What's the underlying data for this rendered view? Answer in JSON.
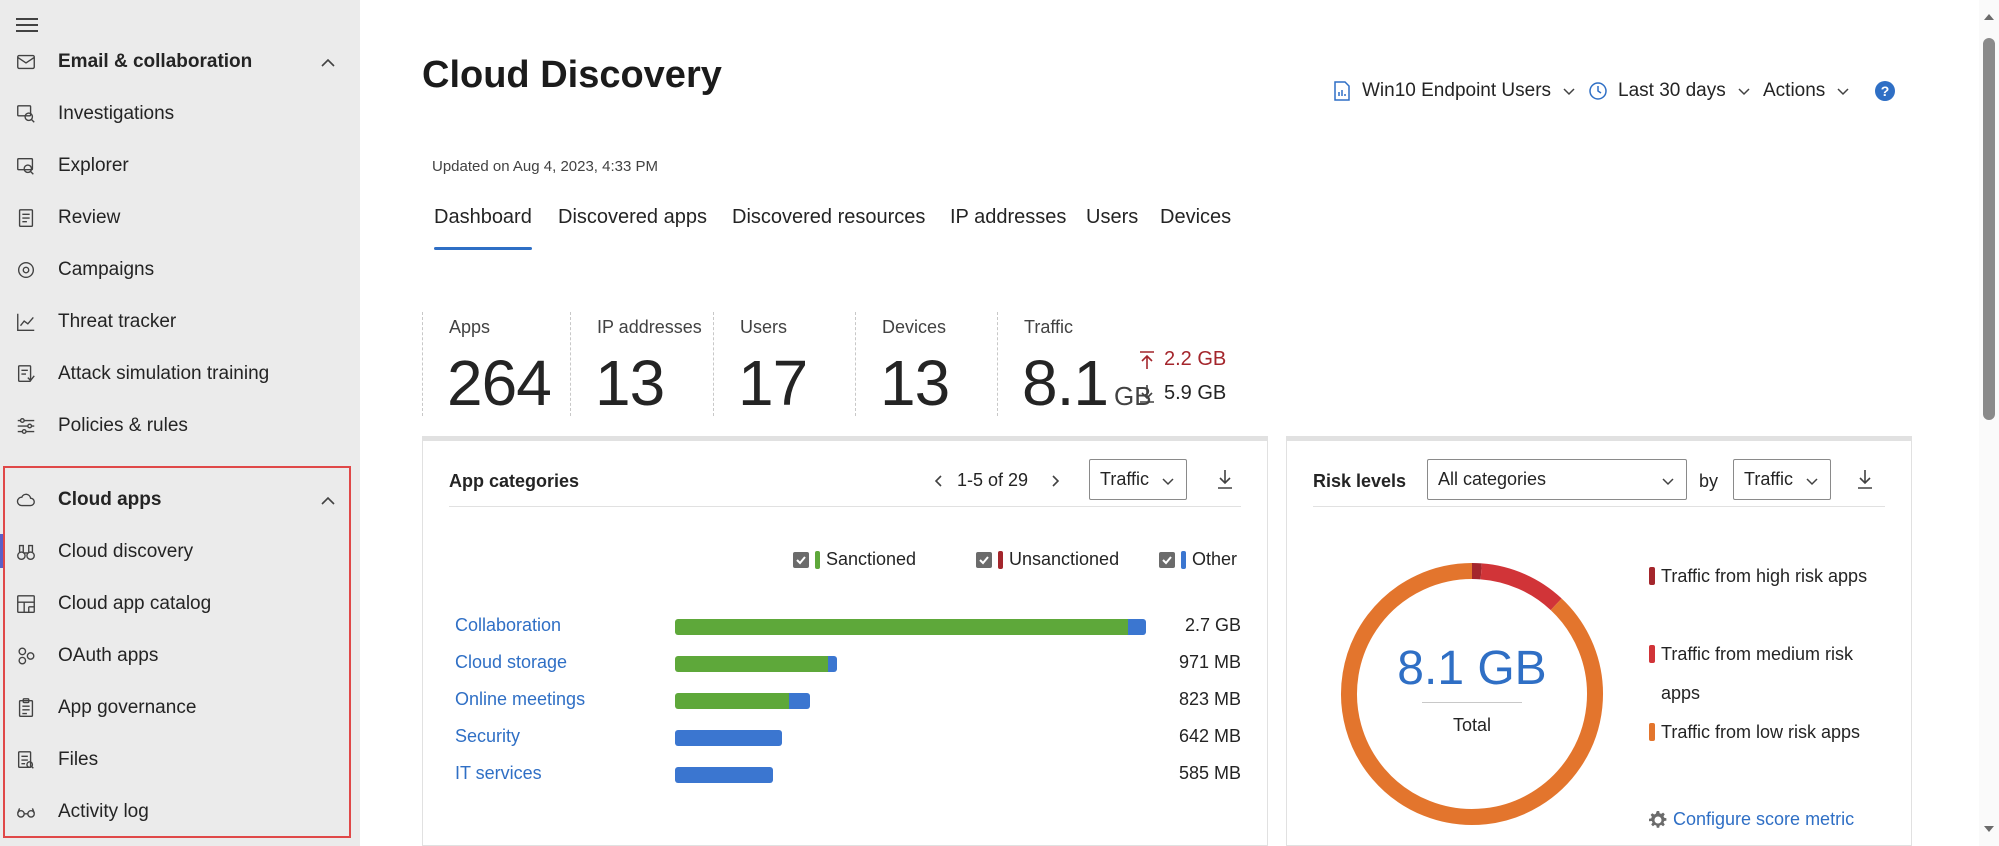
{
  "sidebar": {
    "sections": [
      {
        "label": "Email & collaboration",
        "icon": "mail-icon",
        "expanded": true,
        "type": "group"
      },
      {
        "label": "Investigations",
        "icon": "investigations-icon",
        "type": "item"
      },
      {
        "label": "Explorer",
        "icon": "explorer-icon",
        "type": "item"
      },
      {
        "label": "Review",
        "icon": "review-icon",
        "type": "item"
      },
      {
        "label": "Campaigns",
        "icon": "campaigns-icon",
        "type": "item"
      },
      {
        "label": "Threat tracker",
        "icon": "chart-line-icon",
        "type": "item"
      },
      {
        "label": "Attack simulation training",
        "icon": "attack-simulation-icon",
        "type": "item"
      },
      {
        "label": "Policies & rules",
        "icon": "sliders-icon",
        "type": "item"
      },
      {
        "label": "Cloud apps",
        "icon": "cloud-icon",
        "expanded": true,
        "type": "group"
      },
      {
        "label": "Cloud discovery",
        "icon": "binoculars-icon",
        "type": "item",
        "selected": true
      },
      {
        "label": "Cloud app catalog",
        "icon": "catalog-icon",
        "type": "item"
      },
      {
        "label": "OAuth apps",
        "icon": "oauth-icon",
        "type": "item"
      },
      {
        "label": "App governance",
        "icon": "clipboard-icon",
        "type": "item"
      },
      {
        "label": "Files",
        "icon": "files-icon",
        "type": "item"
      },
      {
        "label": "Activity log",
        "icon": "glasses-icon",
        "type": "item"
      }
    ]
  },
  "page": {
    "title": "Cloud Discovery",
    "updated": "Updated on Aug 4, 2023, 4:33 PM",
    "actions": {
      "report": "Win10 Endpoint Users",
      "period": "Last 30 days",
      "actions": "Actions"
    },
    "tabs": [
      "Dashboard",
      "Discovered apps",
      "Discovered resources",
      "IP addresses",
      "Users",
      "Devices"
    ],
    "active_tab": "Dashboard"
  },
  "stats": {
    "apps": {
      "label": "Apps",
      "value": "264"
    },
    "ips": {
      "label": "IP addresses",
      "value": "13"
    },
    "users": {
      "label": "Users",
      "value": "17"
    },
    "devices": {
      "label": "Devices",
      "value": "13"
    },
    "traffic": {
      "label": "Traffic",
      "value": "8.1",
      "unit": "GB",
      "upload": "2.2 GB",
      "download": "5.9 GB"
    }
  },
  "app_categories": {
    "title": "App categories",
    "pager": "1-5 of 29",
    "dropdown": "Traffic",
    "legend": {
      "sanctioned": "Sanctioned",
      "unsanctioned": "Unsanctioned",
      "other": "Other"
    },
    "rows": [
      {
        "label": "Collaboration",
        "value": "2.7 GB",
        "sanctioned": 2.55,
        "other": 0.1
      },
      {
        "label": "Cloud storage",
        "value": "971 MB",
        "sanctioned": 0.86,
        "other": 0.05
      },
      {
        "label": "Online meetings",
        "value": "823 MB",
        "sanctioned": 0.64,
        "other": 0.12
      },
      {
        "label": "Security",
        "value": "642 MB",
        "sanctioned": 0,
        "other": 0.6
      },
      {
        "label": "IT services",
        "value": "585 MB",
        "sanctioned": 0,
        "other": 0.55
      }
    ]
  },
  "risk_levels": {
    "title": "Risk levels",
    "category_dropdown": "All categories",
    "by_label": "by",
    "metric_dropdown": "Traffic",
    "total_value": "8.1 GB",
    "total_label": "Total",
    "legend": [
      "Traffic from high risk apps",
      "Traffic from medium risk apps",
      "Traffic from low risk apps"
    ],
    "config_link": "Configure score metric",
    "segments": [
      {
        "name": "high",
        "fraction": 0.012,
        "color": "#a4262c"
      },
      {
        "name": "medium",
        "fraction": 0.108,
        "color": "#d13438"
      },
      {
        "name": "low",
        "fraction": 0.88,
        "color": "#e3752d"
      }
    ]
  },
  "colors": {
    "sanctioned": "#5ea83a",
    "unsanctioned": "#a4262c",
    "other": "#3b76d0",
    "accent": "#2f6fc5",
    "upload": "#a4262c"
  }
}
